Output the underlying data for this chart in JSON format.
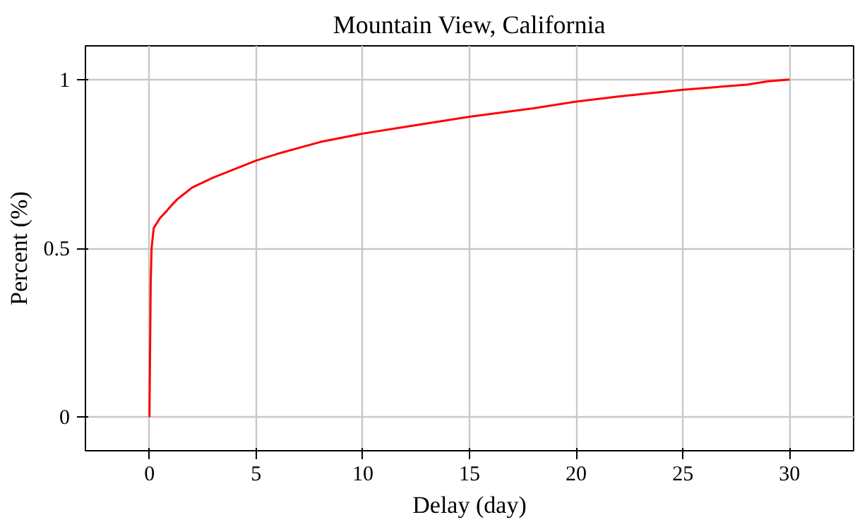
{
  "chart_data": {
    "type": "line",
    "title": "Mountain View, California",
    "xlabel": "Delay (day)",
    "ylabel": "Percent (%)",
    "x": [
      0,
      0.03,
      0.06,
      0.1,
      0.2,
      0.5,
      0.8,
      1,
      1.3,
      2,
      3,
      4,
      5,
      6,
      8,
      10,
      12,
      15,
      18,
      20,
      22,
      25,
      28,
      29,
      30
    ],
    "series": [
      {
        "color": "#ff0000",
        "values": [
          0,
          0.2,
          0.4,
          0.5,
          0.56,
          0.59,
          0.61,
          0.625,
          0.645,
          0.68,
          0.71,
          0.735,
          0.76,
          0.78,
          0.815,
          0.84,
          0.86,
          0.89,
          0.915,
          0.935,
          0.95,
          0.97,
          0.985,
          0.995,
          1
        ]
      }
    ],
    "xlim": [
      -3,
      33
    ],
    "ylim": [
      -0.1,
      1.1
    ],
    "xticks": [
      0,
      5,
      10,
      15,
      20,
      25,
      30
    ],
    "yticks": [
      0,
      0.5,
      1
    ],
    "grid": true,
    "marker": "none",
    "line_style": "solid"
  }
}
